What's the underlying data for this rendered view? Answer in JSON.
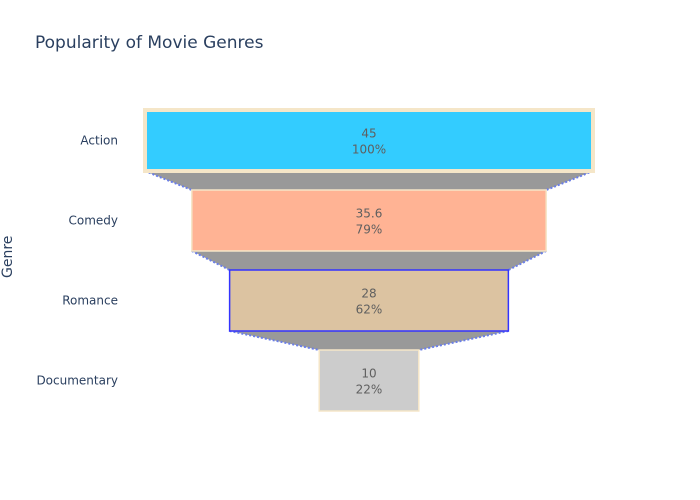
{
  "chart_data": {
    "type": "funnel",
    "title": "Popularity of Movie Genres",
    "ylabel": "Genre",
    "categories": [
      "Action",
      "Comedy",
      "Romance",
      "Documentary"
    ],
    "values": [
      45,
      35.6,
      28,
      10
    ],
    "percent_labels": [
      "100%",
      "79%",
      "62%",
      "22%"
    ],
    "value_labels": [
      "45",
      "35.6",
      "28",
      "10"
    ],
    "colors": [
      "#33ccff",
      "#ffb394",
      "#dcc3a1",
      "#cccccc"
    ],
    "border_colors": [
      "#f5e6c8",
      "#f5e6c8",
      "#3333ff",
      "#f5e6c8"
    ],
    "connector_color": "#999999",
    "connector_line_color": "#6a7ee8"
  }
}
